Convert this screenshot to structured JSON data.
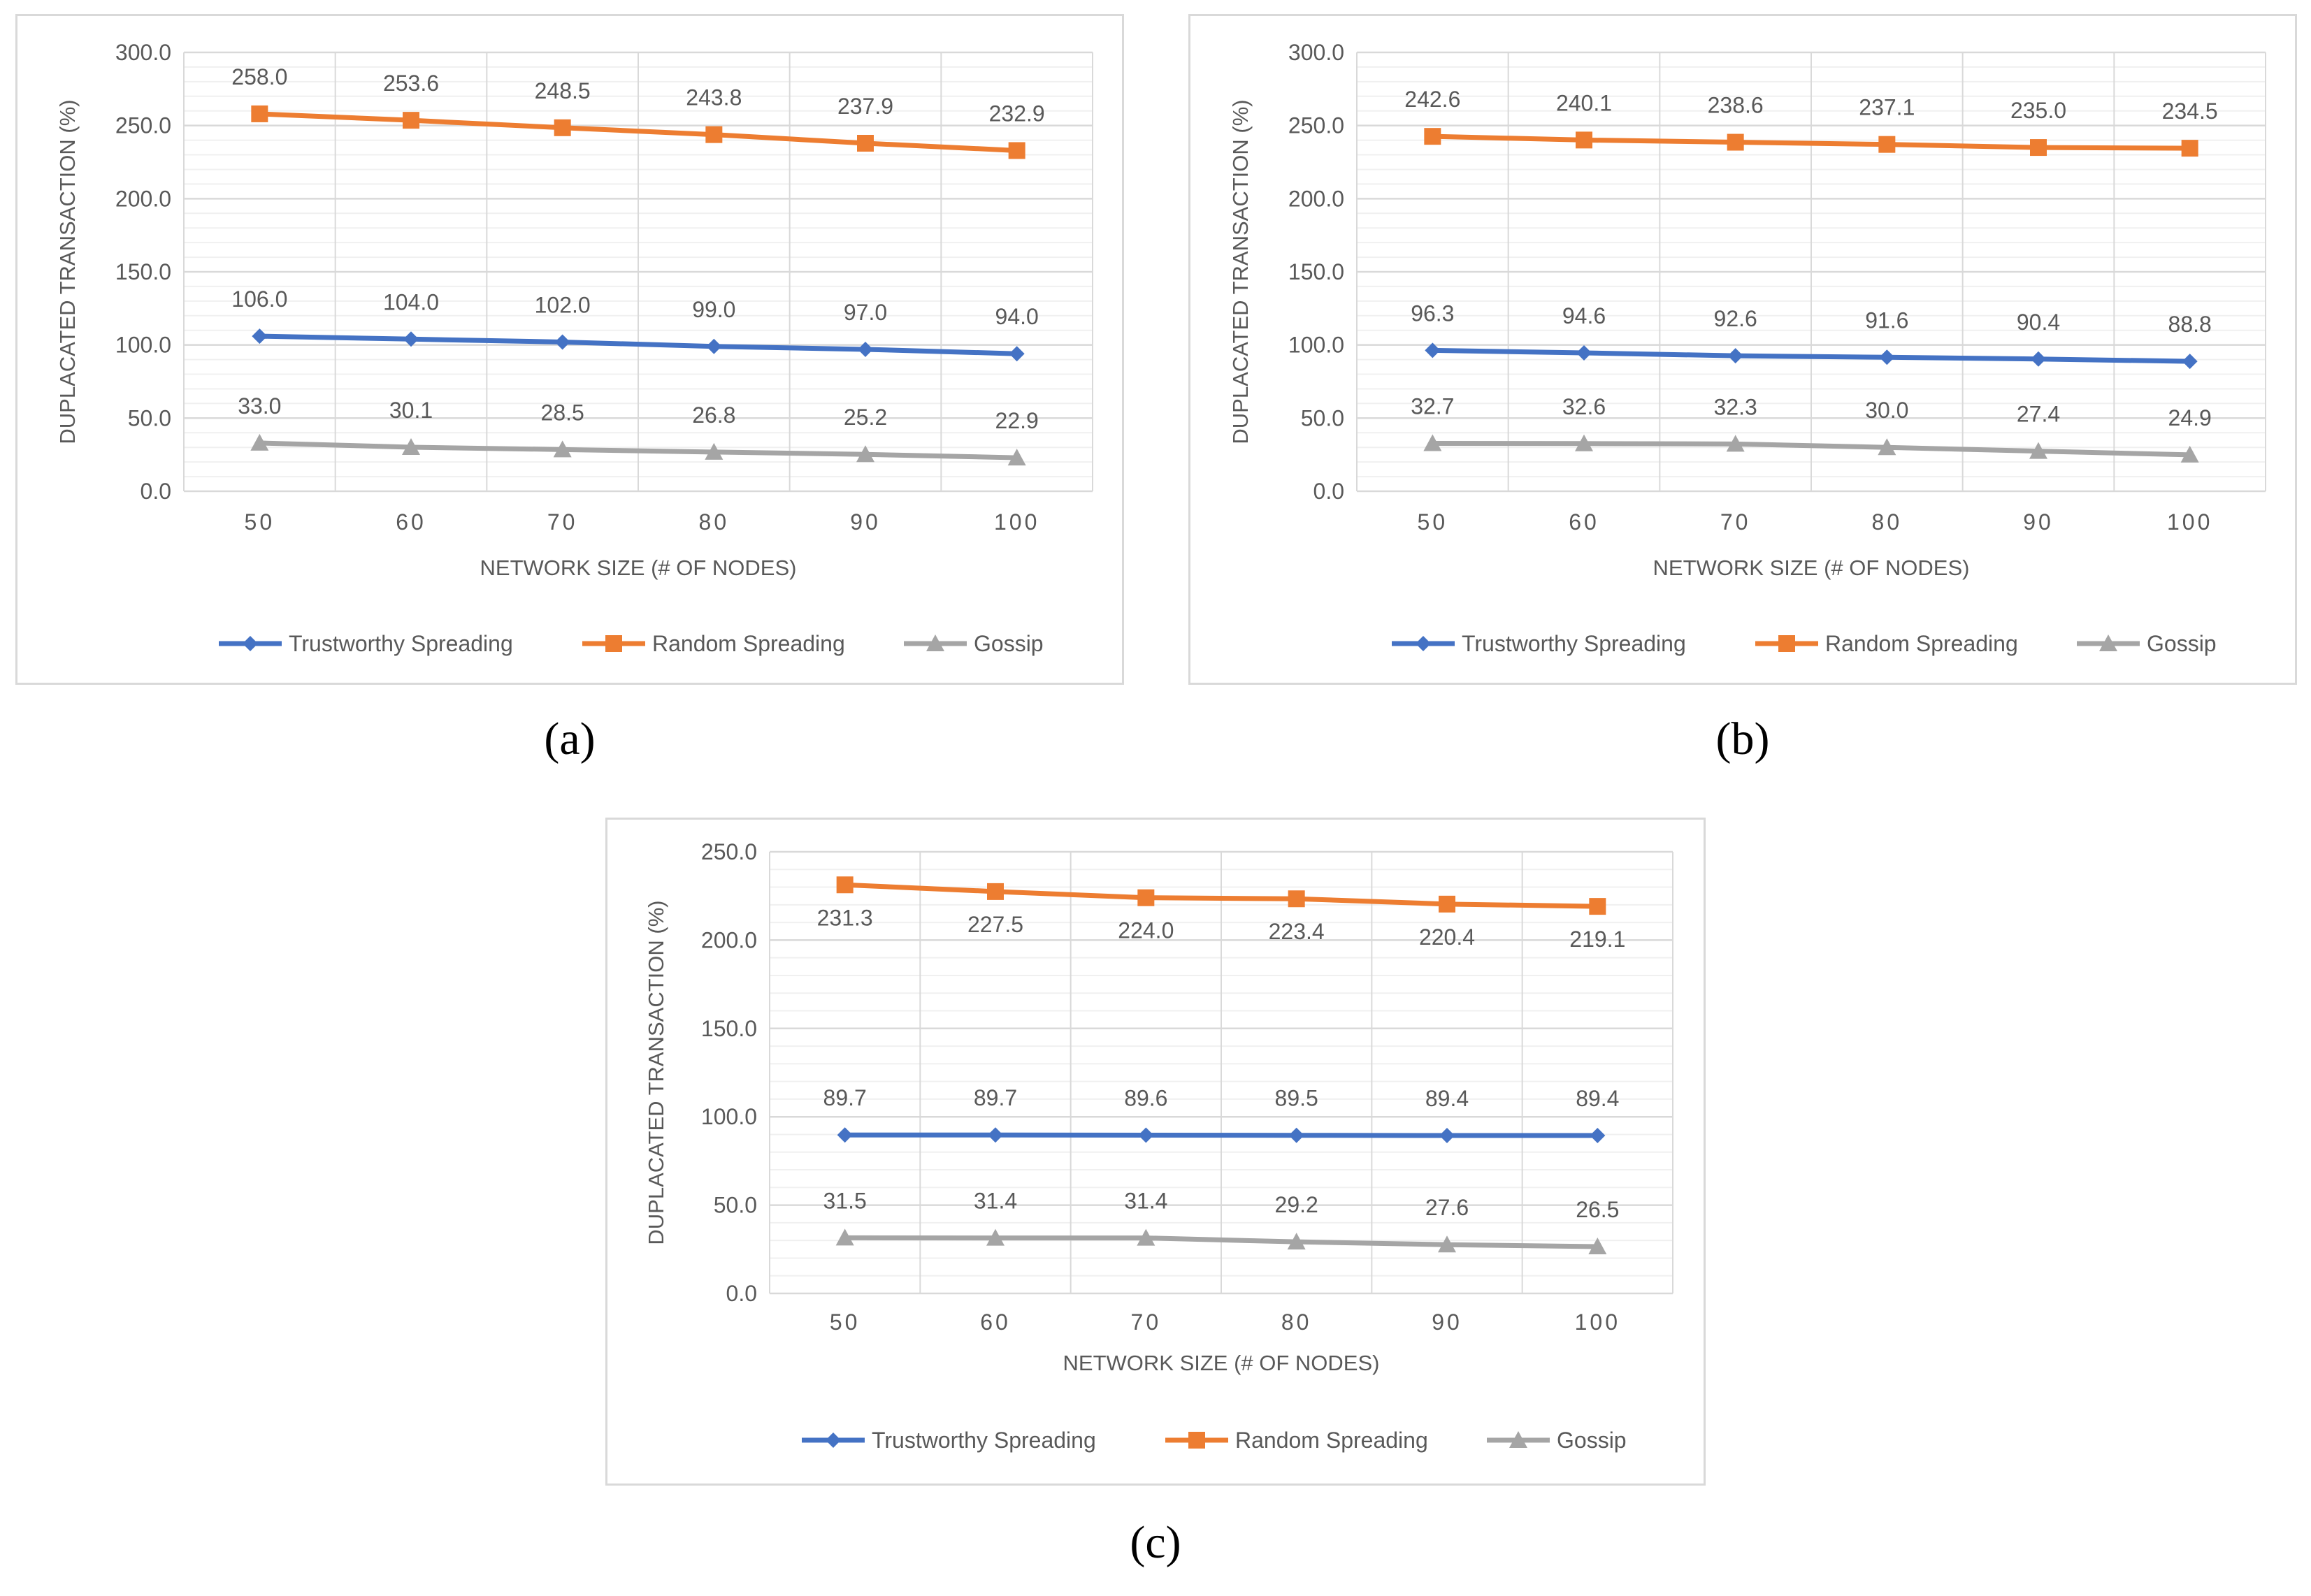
{
  "chart_data": [
    {
      "type": "line",
      "panel_label": "(a)",
      "x": [
        "50",
        "60",
        "70",
        "80",
        "90",
        "100"
      ],
      "xlabel": "NETWORK SIZE (# OF NODES)",
      "ylabel": "DUPLACATED TRANSACTION (%)",
      "ylim": [
        0,
        300
      ],
      "ytick_step": 50,
      "y_tick_labels": [
        "0.0",
        "50.0",
        "100.0",
        "150.0",
        "200.0",
        "250.0",
        "300.0"
      ],
      "legend_position": "bottom",
      "series": [
        {
          "name": "Trustworthy Spreading",
          "color": "#4472c4",
          "marker": "diamond",
          "values": [
            106.0,
            104.0,
            102.0,
            99.0,
            97.0,
            94.0
          ],
          "labels": [
            "106.0",
            "104.0",
            "102.0",
            "99.0",
            "97.0",
            "94.0"
          ],
          "label_pos": "above"
        },
        {
          "name": "Random Spreading",
          "color": "#ed7d31",
          "marker": "square",
          "values": [
            258.0,
            253.6,
            248.5,
            243.8,
            237.9,
            232.9
          ],
          "labels": [
            "258.0",
            "253.6",
            "248.5",
            "243.8",
            "237.9",
            "232.9"
          ],
          "label_pos": "above"
        },
        {
          "name": "Gossip",
          "color": "#a5a5a5",
          "marker": "triangle",
          "values": [
            33.0,
            30.1,
            28.5,
            26.8,
            25.2,
            22.9
          ],
          "labels": [
            "33.0",
            "30.1",
            "28.5",
            "26.8",
            "25.2",
            "22.9"
          ],
          "label_pos": "above"
        }
      ]
    },
    {
      "type": "line",
      "panel_label": "(b)",
      "x": [
        "50",
        "60",
        "70",
        "80",
        "90",
        "100"
      ],
      "xlabel": "NETWORK SIZE (# OF NODES)",
      "ylabel": "DUPLACATED TRANSACTION (%)",
      "ylim": [
        0,
        300
      ],
      "ytick_step": 50,
      "y_tick_labels": [
        "0.0",
        "50.0",
        "100.0",
        "150.0",
        "200.0",
        "250.0",
        "300.0"
      ],
      "legend_position": "bottom",
      "series": [
        {
          "name": "Trustworthy Spreading",
          "color": "#4472c4",
          "marker": "diamond",
          "values": [
            96.3,
            94.6,
            92.6,
            91.6,
            90.4,
            88.8
          ],
          "labels": [
            "96.3",
            "94.6",
            "92.6",
            "91.6",
            "90.4",
            "88.8"
          ],
          "label_pos": "above"
        },
        {
          "name": "Random Spreading",
          "color": "#ed7d31",
          "marker": "square",
          "values": [
            242.6,
            240.1,
            238.6,
            237.1,
            235.0,
            234.5
          ],
          "labels": [
            "242.6",
            "240.1",
            "238.6",
            "237.1",
            "235.0",
            "234.5"
          ],
          "label_pos": "above"
        },
        {
          "name": "Gossip",
          "color": "#a5a5a5",
          "marker": "triangle",
          "values": [
            32.7,
            32.6,
            32.3,
            30.0,
            27.4,
            24.9
          ],
          "labels": [
            "32.7",
            "32.6",
            "32.3",
            "30.0",
            "27.4",
            "24.9"
          ],
          "label_pos": "above"
        }
      ]
    },
    {
      "type": "line",
      "panel_label": "(c)",
      "x": [
        "50",
        "60",
        "70",
        "80",
        "90",
        "100"
      ],
      "xlabel": "NETWORK SIZE (# OF NODES)",
      "ylabel": "DUPLACATED TRANSACTION (%)",
      "ylim": [
        0,
        250
      ],
      "ytick_step": 50,
      "y_tick_labels": [
        "0.0",
        "50.0",
        "100.0",
        "150.0",
        "200.0",
        "250.0"
      ],
      "legend_position": "bottom",
      "series": [
        {
          "name": "Trustworthy Spreading",
          "color": "#4472c4",
          "marker": "diamond",
          "values": [
            89.7,
            89.7,
            89.6,
            89.5,
            89.4,
            89.4
          ],
          "labels": [
            "89.7",
            "89.7",
            "89.6",
            "89.5",
            "89.4",
            "89.4"
          ],
          "label_pos": "above"
        },
        {
          "name": "Random Spreading",
          "color": "#ed7d31",
          "marker": "square",
          "values": [
            231.3,
            227.5,
            224.0,
            223.4,
            220.4,
            219.1
          ],
          "labels": [
            "231.3",
            "227.5",
            "224.0",
            "223.4",
            "220.4",
            "219.1"
          ],
          "label_pos": "below"
        },
        {
          "name": "Gossip",
          "color": "#a5a5a5",
          "marker": "triangle",
          "values": [
            31.5,
            31.4,
            31.4,
            29.2,
            27.6,
            26.5
          ],
          "labels": [
            "31.5",
            "31.4",
            "31.4",
            "29.2",
            "27.6",
            "26.5"
          ],
          "label_pos": "above"
        }
      ]
    }
  ]
}
